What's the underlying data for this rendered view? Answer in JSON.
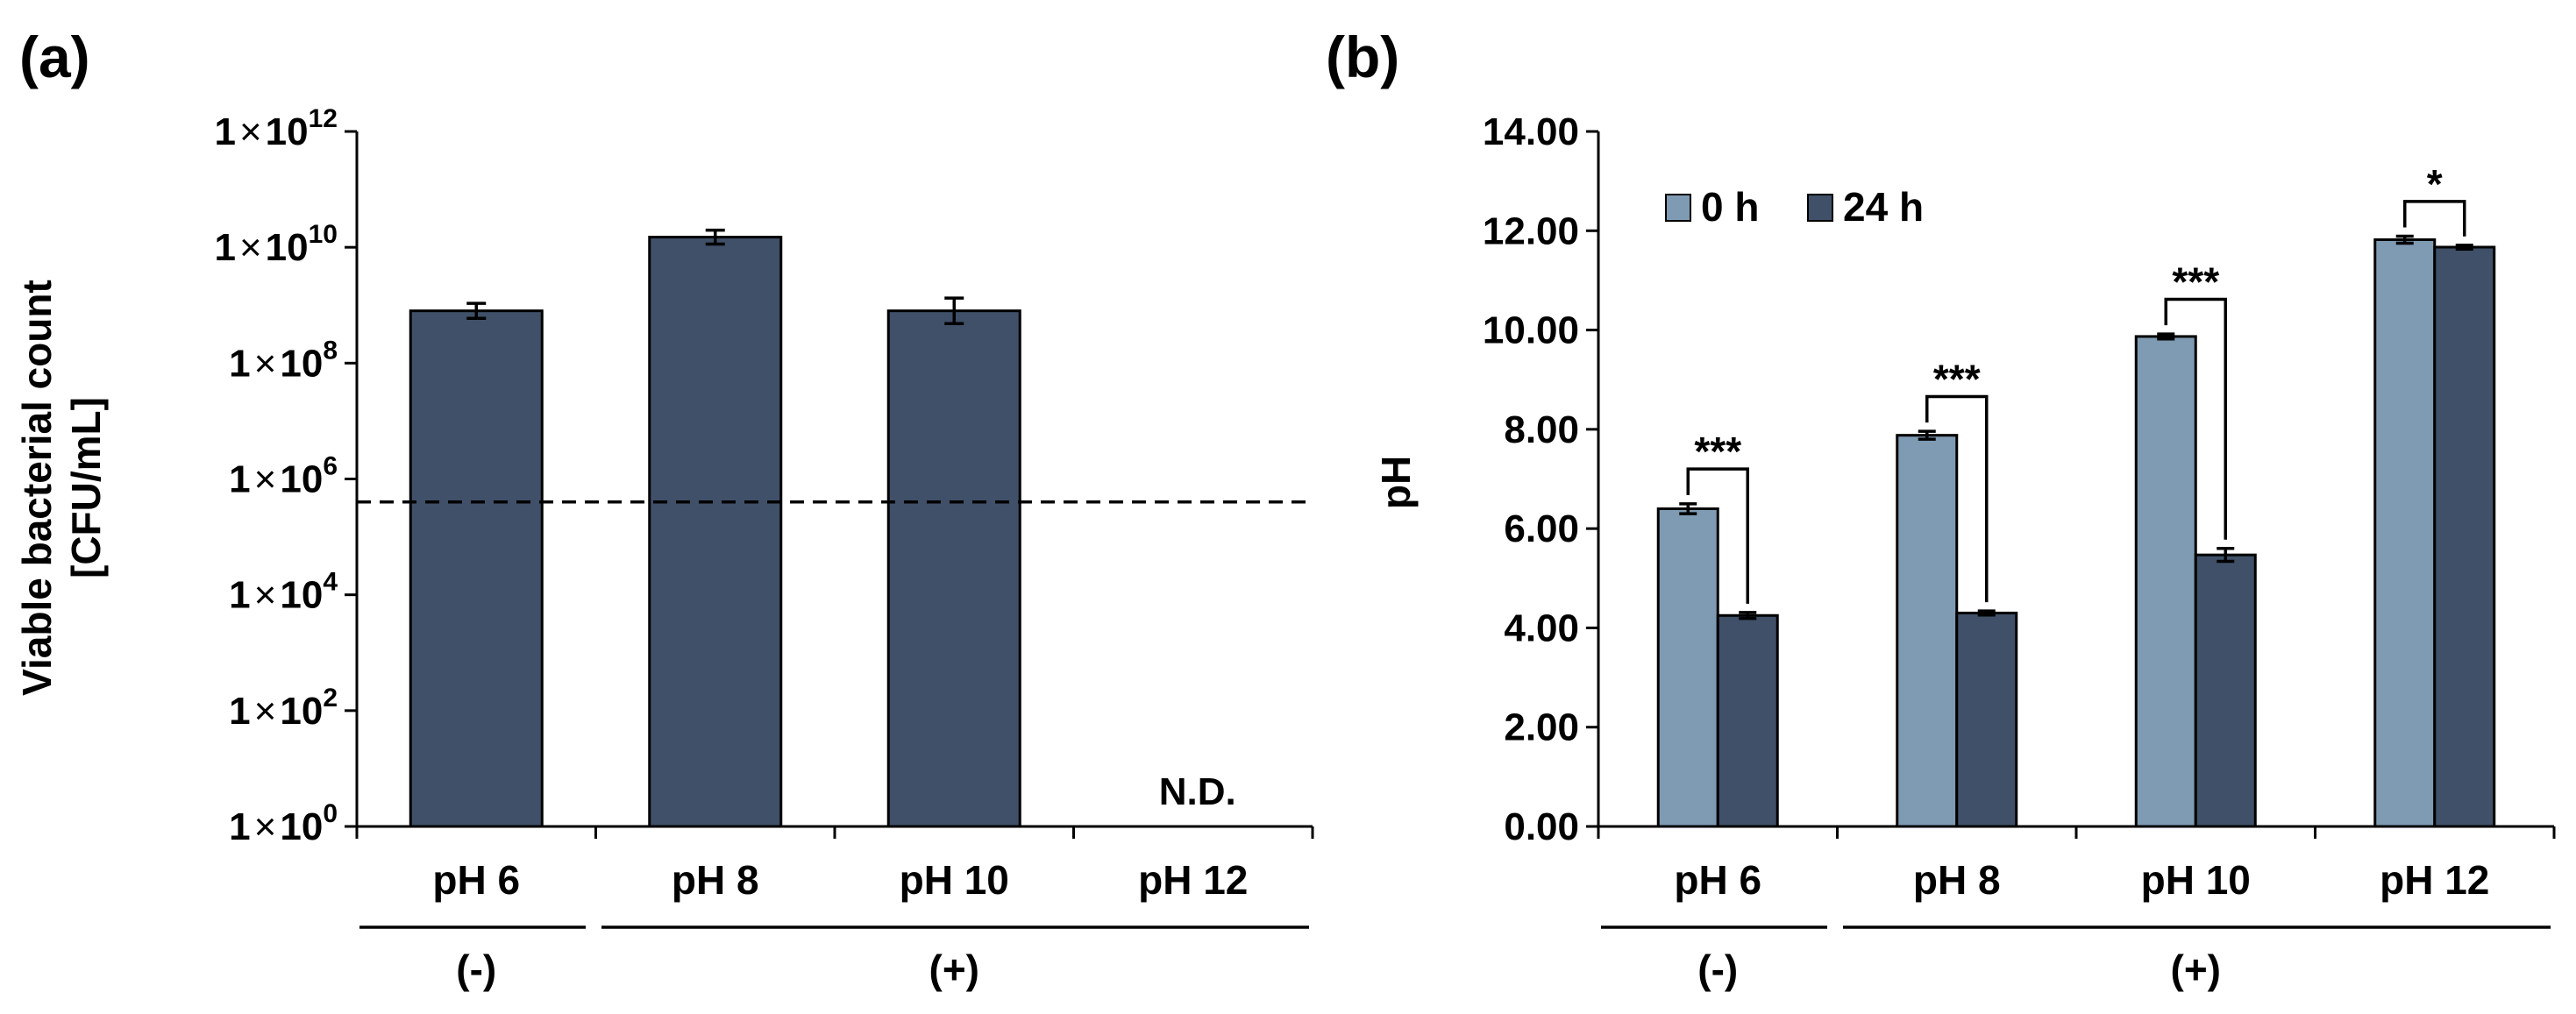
{
  "chart_data": [
    {
      "panel_label": "(a)",
      "type": "bar",
      "scale": "log10",
      "categories": [
        "pH 6",
        "pH 8",
        "pH 10",
        "pH 12"
      ],
      "groups": [
        {
          "label": "(-)",
          "categories": [
            "pH 6"
          ]
        },
        {
          "label": "(+)",
          "categories": [
            "pH 8",
            "pH 10",
            "pH 12"
          ]
        }
      ],
      "series": [
        {
          "name": "Viable bacterial count",
          "color": "#3f5068",
          "values": [
            800000000,
            15000000000,
            800000000,
            null
          ],
          "errors_log10": [
            0.13,
            0.12,
            0.22,
            null
          ]
        }
      ],
      "annotations": [
        {
          "category": "pH 12",
          "text": "N.D."
        }
      ],
      "reference_line": {
        "value": 400000,
        "style": "dashed"
      },
      "ylabel": [
        "Viable bacterial count",
        "[CFU/mL]"
      ],
      "ylim_log10": [
        0,
        12
      ],
      "yticks": [
        {
          "exp": 0,
          "mantissa": "1",
          "times": "×",
          "base": "10",
          "power": "0"
        },
        {
          "exp": 2,
          "mantissa": "1",
          "times": "×",
          "base": "10",
          "power": "2"
        },
        {
          "exp": 4,
          "mantissa": "1",
          "times": "×",
          "base": "10",
          "power": "4"
        },
        {
          "exp": 6,
          "mantissa": "1",
          "times": "×",
          "base": "10",
          "power": "6"
        },
        {
          "exp": 8,
          "mantissa": "1",
          "times": "×",
          "base": "10",
          "power": "8"
        },
        {
          "exp": 10,
          "mantissa": "1",
          "times": "×",
          "base": "10",
          "power": "10"
        },
        {
          "exp": 12,
          "mantissa": "1",
          "times": "×",
          "base": "10",
          "power": "12"
        }
      ],
      "grid": false
    },
    {
      "panel_label": "(b)",
      "type": "bar",
      "categories": [
        "pH 6",
        "pH 8",
        "pH 10",
        "pH 12"
      ],
      "groups": [
        {
          "label": "(-)",
          "categories": [
            "pH 6"
          ]
        },
        {
          "label": "(+)",
          "categories": [
            "pH 8",
            "pH 10",
            "pH 12"
          ]
        }
      ],
      "series": [
        {
          "name": "0 h",
          "color": "#7f9bb3",
          "values": [
            6.4,
            7.88,
            9.87,
            11.82
          ],
          "errors": [
            0.1,
            0.08,
            0.05,
            0.07
          ]
        },
        {
          "name": "24 h",
          "color": "#3f5068",
          "values": [
            4.25,
            4.3,
            5.47,
            11.67
          ],
          "errors": [
            0.06,
            0.04,
            0.13,
            0.04
          ]
        }
      ],
      "significance": [
        {
          "category": "pH 6",
          "text": "***"
        },
        {
          "category": "pH 8",
          "text": "***"
        },
        {
          "category": "pH 10",
          "text": "***"
        },
        {
          "category": "pH 12",
          "text": "*"
        }
      ],
      "ylabel": "pH",
      "ylim": [
        0,
        14
      ],
      "yticks": [
        {
          "value": 0,
          "label": "0.00"
        },
        {
          "value": 2,
          "label": "2.00"
        },
        {
          "value": 4,
          "label": "4.00"
        },
        {
          "value": 6,
          "label": "6.00"
        },
        {
          "value": 8,
          "label": "8.00"
        },
        {
          "value": 10,
          "label": "10.00"
        },
        {
          "value": 12,
          "label": "12.00"
        },
        {
          "value": 14,
          "label": "14.00"
        }
      ],
      "legend_position": "top-left",
      "grid": false
    }
  ]
}
